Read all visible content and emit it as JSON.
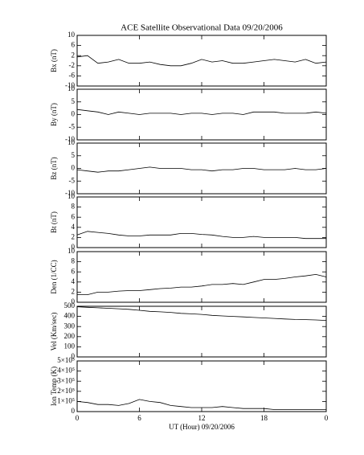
{
  "chart_data": [
    {
      "type": "line",
      "title": "ACE Satellite Observational Data   09/20/2006",
      "ylabel": "Bx (nT)",
      "color": "#000000",
      "x": [
        0,
        1,
        2,
        3,
        4,
        5,
        6,
        7,
        8,
        9,
        10,
        11,
        12,
        13,
        14,
        15,
        16,
        17,
        18,
        19,
        20,
        21,
        22,
        23,
        24
      ],
      "values": [
        1.5,
        2,
        -1,
        -0.5,
        0.5,
        -1,
        -1,
        -0.5,
        -1.5,
        -2,
        -2,
        -1,
        0.5,
        -0.5,
        0,
        -1,
        -1,
        -0.5,
        0,
        0.5,
        0,
        -0.5,
        0.5,
        -1,
        -0.5
      ],
      "xlim": [
        0,
        24
      ],
      "xticks": [
        0,
        6,
        12,
        18,
        {
          "value": 24,
          "label": "0"
        }
      ],
      "ylim": [
        -10,
        10
      ],
      "yticks": [
        -10,
        -6,
        -2,
        2,
        6,
        10
      ]
    },
    {
      "type": "line",
      "ylabel": "By (nT)",
      "color": "#000000",
      "x": [
        0,
        1,
        2,
        3,
        4,
        5,
        6,
        7,
        8,
        9,
        10,
        11,
        12,
        13,
        14,
        15,
        16,
        17,
        18,
        19,
        20,
        21,
        22,
        23,
        24
      ],
      "values": [
        2,
        1.5,
        1,
        0,
        1,
        0.5,
        0,
        0.5,
        0.5,
        0.5,
        0,
        0.5,
        0.5,
        0,
        0.5,
        0.5,
        0,
        1,
        1,
        1,
        0.5,
        0.5,
        0.5,
        1,
        0.5
      ],
      "xlim": [
        0,
        24
      ],
      "xticks": [
        0,
        6,
        12,
        18,
        {
          "value": 24,
          "label": "0"
        }
      ],
      "ylim": [
        -10,
        10
      ],
      "yticks": [
        -10,
        -5,
        0,
        5,
        10
      ]
    },
    {
      "type": "line",
      "ylabel": "Bz (nT)",
      "color": "#000000",
      "x": [
        0,
        1,
        2,
        3,
        4,
        5,
        6,
        7,
        8,
        9,
        10,
        11,
        12,
        13,
        14,
        15,
        16,
        17,
        18,
        19,
        20,
        21,
        22,
        23,
        24
      ],
      "values": [
        -0.5,
        -1,
        -1.5,
        -1,
        -1,
        -0.5,
        0,
        0.5,
        0,
        0,
        0,
        -0.5,
        -0.5,
        -1,
        -0.5,
        -0.5,
        0,
        0,
        -0.5,
        -0.5,
        -0.5,
        0,
        -0.5,
        -0.5,
        0
      ],
      "xlim": [
        0,
        24
      ],
      "xticks": [
        0,
        6,
        12,
        18,
        {
          "value": 24,
          "label": "0"
        }
      ],
      "ylim": [
        -10,
        10
      ],
      "yticks": [
        -10,
        -5,
        0,
        5,
        10
      ]
    },
    {
      "type": "line",
      "ylabel": "Bt (nT)",
      "color": "#000000",
      "x": [
        0,
        1,
        2,
        3,
        4,
        5,
        6,
        7,
        8,
        9,
        10,
        11,
        12,
        13,
        14,
        15,
        16,
        17,
        18,
        19,
        20,
        21,
        22,
        23,
        24
      ],
      "values": [
        2.5,
        3.2,
        3,
        2.8,
        2.5,
        2.3,
        2.3,
        2.5,
        2.5,
        2.5,
        2.8,
        2.8,
        2.6,
        2.5,
        2.2,
        2,
        2,
        2.2,
        2,
        2,
        2,
        2,
        1.8,
        1.8,
        1.8
      ],
      "xlim": [
        0,
        24
      ],
      "xticks": [
        0,
        6,
        12,
        18,
        {
          "value": 24,
          "label": "0"
        }
      ],
      "ylim": [
        0,
        10
      ],
      "yticks": [
        0,
        2,
        4,
        6,
        8,
        10
      ]
    },
    {
      "type": "line",
      "ylabel": "Den (1/CC)",
      "color": "#000000",
      "x": [
        0,
        1,
        2,
        3,
        4,
        5,
        6,
        7,
        8,
        9,
        10,
        11,
        12,
        13,
        14,
        15,
        16,
        17,
        18,
        19,
        20,
        21,
        22,
        23,
        24
      ],
      "values": [
        1.5,
        1.5,
        2,
        2,
        2.2,
        2.3,
        2.3,
        2.5,
        2.7,
        2.8,
        3,
        3,
        3.2,
        3.5,
        3.5,
        3.7,
        3.5,
        4,
        4.5,
        4.5,
        4.7,
        5,
        5.2,
        5.5,
        5
      ],
      "xlim": [
        0,
        24
      ],
      "xticks": [
        0,
        6,
        12,
        18,
        {
          "value": 24,
          "label": "0"
        }
      ],
      "ylim": [
        0,
        10
      ],
      "yticks": [
        0,
        2,
        4,
        6,
        8,
        10
      ]
    },
    {
      "type": "line",
      "ylabel": "Vel (Km/sec)",
      "color": "#000000",
      "x": [
        0,
        1,
        2,
        3,
        4,
        5,
        6,
        7,
        8,
        9,
        10,
        11,
        12,
        13,
        14,
        15,
        16,
        17,
        18,
        19,
        20,
        21,
        22,
        23,
        24
      ],
      "values": [
        495,
        490,
        485,
        480,
        475,
        470,
        460,
        450,
        445,
        440,
        430,
        425,
        420,
        410,
        405,
        400,
        395,
        390,
        385,
        380,
        375,
        370,
        368,
        365,
        360
      ],
      "xlim": [
        0,
        24
      ],
      "xticks": [
        0,
        6,
        12,
        18,
        {
          "value": 24,
          "label": "0"
        }
      ],
      "ylim": [
        0,
        500
      ],
      "yticks": [
        0,
        100,
        200,
        300,
        400,
        500
      ]
    },
    {
      "type": "line",
      "ylabel": "Ion Temp (K)",
      "xlabel": "UT (Hour)   09/20/2006",
      "color": "#000000",
      "x": [
        0,
        1,
        2,
        3,
        4,
        5,
        6,
        7,
        8,
        9,
        10,
        11,
        12,
        13,
        14,
        15,
        16,
        17,
        18,
        19,
        20,
        21,
        22,
        23,
        24
      ],
      "values": [
        100000,
        90000,
        70000,
        70000,
        60000,
        80000,
        120000,
        100000,
        90000,
        60000,
        50000,
        40000,
        40000,
        40000,
        50000,
        40000,
        30000,
        30000,
        30000,
        20000,
        20000,
        20000,
        20000,
        20000,
        20000
      ],
      "xlim": [
        0,
        24
      ],
      "xticks": [
        0,
        6,
        12,
        18,
        {
          "value": 24,
          "label": "0"
        }
      ],
      "ylim": [
        0,
        500000
      ],
      "yticks": [
        0,
        {
          "value": 100000,
          "label": "1×10⁵"
        },
        {
          "value": 200000,
          "label": "2×10⁵"
        },
        {
          "value": 300000,
          "label": "3×10⁵"
        },
        {
          "value": 400000,
          "label": "4×10⁵"
        },
        {
          "value": 500000,
          "label": "5×10⁵"
        }
      ]
    }
  ]
}
